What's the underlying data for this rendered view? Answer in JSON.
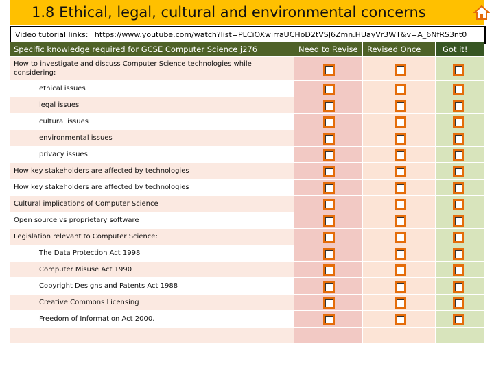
{
  "header": {
    "title": "1.8 Ethical, legal, cultural and environmental concerns"
  },
  "link": {
    "label": "Video tutorial links:",
    "url": "https://www.youtube.com/watch?list=PLCiOXwirraUCHoD2tVSJ6Zmn.HUayVr3WT&v=A_6NfRS3nt0"
  },
  "table": {
    "columns": [
      "Specific knowledge required for GCSE Computer Science j276",
      "Need to Revise",
      "Revised Once",
      "Got it!"
    ],
    "rows": [
      "How to investigate and discuss Computer Science technologies while considering:",
      "ethical issues",
      "legal issues",
      "cultural issues",
      "environmental issues",
      "privacy issues",
      "How key stakeholders are affected by technologies",
      "How key stakeholders are affected by technologies",
      "Cultural implications of Computer Science",
      "Open source vs proprietary software",
      "Legislation relevant to Computer Science:",
      "The Data Protection Act 1998",
      "Computer Misuse Act 1990",
      "Copyright Designs and Patents Act 1988",
      "Creative Commons Licensing",
      "Freedom of Information Act 2000."
    ]
  }
}
